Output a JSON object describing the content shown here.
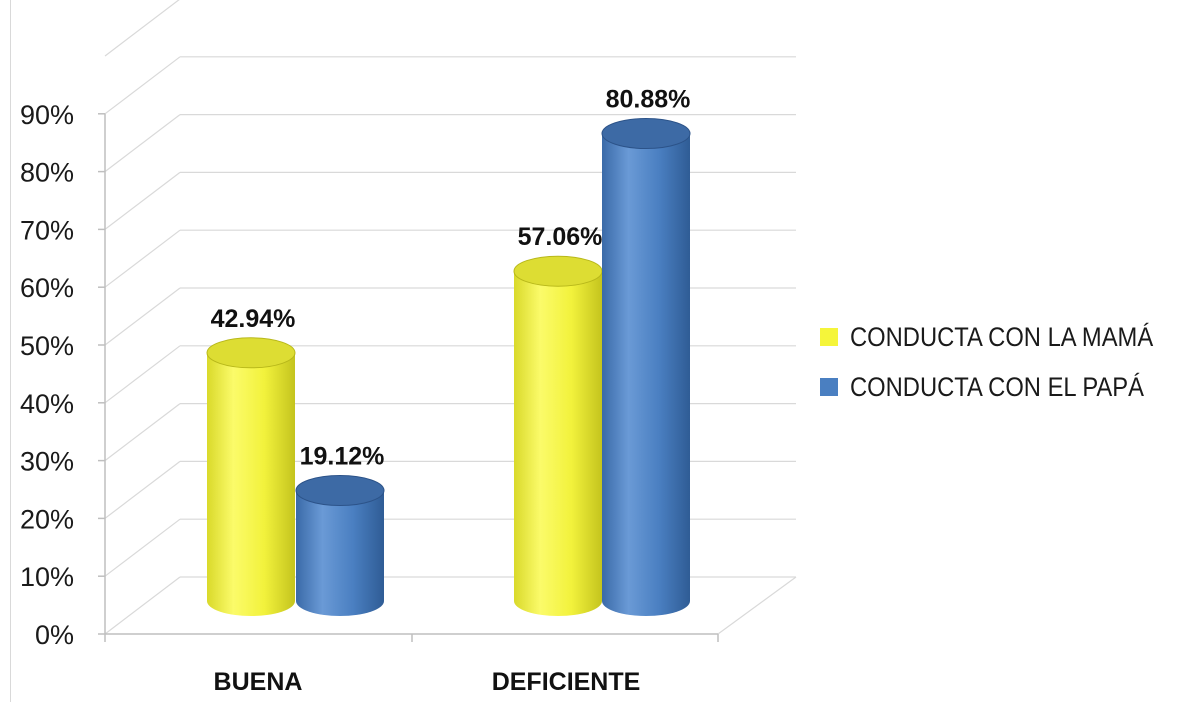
{
  "chart_data": {
    "type": "bar",
    "title": "",
    "xlabel": "",
    "ylabel": "",
    "categories": [
      "BUENA",
      "DEFICIENTE"
    ],
    "series": [
      {
        "name": "CONDUCTA CON LA MAMÁ",
        "values": [
          42.94,
          57.06
        ],
        "labels": [
          "42.94%",
          "57.06%"
        ],
        "color": "#f2f23c"
      },
      {
        "name": "CONDUCTA CON EL PAPÁ",
        "values": [
          19.12,
          80.88
        ],
        "labels": [
          "19.12%",
          "80.88%"
        ],
        "color": "#4a7fc1"
      }
    ],
    "ylim": [
      0,
      90
    ],
    "ytick_labels": [
      "0%",
      "10%",
      "20%",
      "30%",
      "40%",
      "50%",
      "60%",
      "70%",
      "80%",
      "90%"
    ],
    "grid": true,
    "style": "3d-cylinder",
    "legend_position": "right"
  }
}
